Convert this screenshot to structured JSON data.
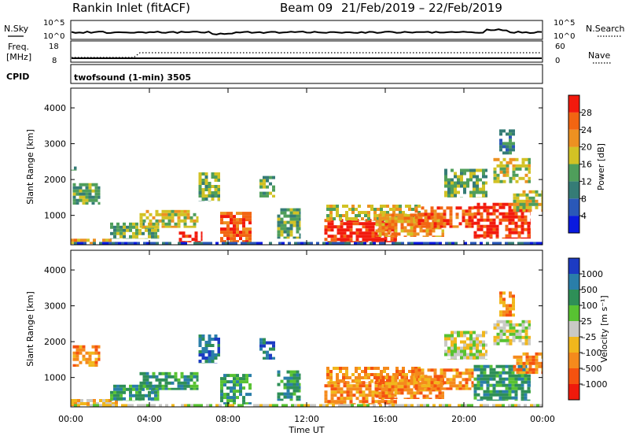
{
  "header": {
    "station": "Rankin Inlet (fitACF)",
    "beam": "Beam 09",
    "dates": "21/Feb/2019 – 22/Feb/2019"
  },
  "noise_panel": {
    "left_label": "N.Sky",
    "right_label": "N.Search",
    "left_ticks": [
      "10^5",
      "10^0"
    ],
    "right_ticks": [
      "10^5",
      "10^0"
    ]
  },
  "freq_panel": {
    "label_1": "Freq.",
    "label_2": "[MHz]",
    "left_ticks": [
      "18",
      "8"
    ],
    "right_label": "Nave",
    "right_ticks": [
      "60",
      "0"
    ]
  },
  "cpid_panel": {
    "label": "CPID",
    "mode": "twofsound (1-min) 3505"
  },
  "chart_data": [
    {
      "type": "heatmap",
      "name": "power",
      "ylabel": "Slant Range [km]",
      "xlabel": "",
      "x_ticks": [
        "00:00",
        "04:00",
        "08:00",
        "12:00",
        "16:00",
        "20:00",
        "00:00"
      ],
      "x_range_hours": [
        0,
        24
      ],
      "y_ticks": [
        1000,
        2000,
        3000,
        4000
      ],
      "ylim": [
        180,
        4550
      ],
      "colorbar": {
        "label": "Power [dB]",
        "ticks": [
          "28",
          "24",
          "20",
          "16",
          "12",
          "8",
          "4"
        ],
        "range": [
          0,
          32
        ],
        "colors": [
          "#0a1adf",
          "#2a58b8",
          "#357c76",
          "#4f9e5b",
          "#d2c224",
          "#ed9121",
          "#f26512",
          "#f21a0d"
        ]
      },
      "regions": [
        {
          "t0": 0.0,
          "t1": 2.4,
          "r0": 200,
          "r1": 350,
          "level": 5
        },
        {
          "t0": 0.1,
          "t1": 1.5,
          "r0": 1300,
          "r1": 1900,
          "level": 3
        },
        {
          "t0": 0.0,
          "t1": 0.3,
          "r0": 2250,
          "r1": 2450,
          "level": 2
        },
        {
          "t0": 2.0,
          "t1": 4.5,
          "r0": 350,
          "r1": 800,
          "level": 3
        },
        {
          "t0": 3.5,
          "t1": 6.5,
          "r0": 650,
          "r1": 1150,
          "level": 4
        },
        {
          "t0": 5.5,
          "t1": 6.7,
          "r0": 250,
          "r1": 550,
          "level": 7
        },
        {
          "t0": 6.5,
          "t1": 7.6,
          "r0": 1400,
          "r1": 2200,
          "level": 3
        },
        {
          "t0": 7.6,
          "t1": 9.2,
          "r0": 250,
          "r1": 1100,
          "level": 6
        },
        {
          "t0": 9.6,
          "t1": 10.4,
          "r0": 1500,
          "r1": 2100,
          "level": 3
        },
        {
          "t0": 10.5,
          "t1": 11.7,
          "r0": 350,
          "r1": 1200,
          "level": 3
        },
        {
          "t0": 12.9,
          "t1": 16.6,
          "r0": 250,
          "r1": 900,
          "level": 7
        },
        {
          "t0": 13.0,
          "t1": 17.8,
          "r0": 850,
          "r1": 1300,
          "level": 4
        },
        {
          "t0": 15.5,
          "t1": 19.0,
          "r0": 400,
          "r1": 1050,
          "level": 5
        },
        {
          "t0": 17.5,
          "t1": 20.5,
          "r0": 650,
          "r1": 1250,
          "level": 6
        },
        {
          "t0": 19.0,
          "t1": 21.2,
          "r0": 1500,
          "r1": 2300,
          "level": 3
        },
        {
          "t0": 20.5,
          "t1": 23.4,
          "r0": 350,
          "r1": 1350,
          "level": 7
        },
        {
          "t0": 21.5,
          "t1": 23.4,
          "r0": 1900,
          "r1": 2600,
          "level": 4
        },
        {
          "t0": 22.5,
          "t1": 24.0,
          "r0": 1100,
          "r1": 1700,
          "level": 4
        },
        {
          "t0": 21.8,
          "t1": 22.6,
          "r0": 2700,
          "r1": 3400,
          "level": 2
        },
        {
          "t0": 0.0,
          "t1": 24.0,
          "r0": 180,
          "r1": 260,
          "level": 1
        }
      ]
    },
    {
      "type": "heatmap",
      "name": "velocity",
      "ylabel": "Slant Range [km]",
      "xlabel": "Time UT",
      "x_ticks": [
        "00:00",
        "04:00",
        "08:00",
        "12:00",
        "16:00",
        "20:00",
        "00:00"
      ],
      "x_range_hours": [
        0,
        24
      ],
      "y_ticks": [
        1000,
        2000,
        3000,
        4000
      ],
      "ylim": [
        180,
        4550
      ],
      "colorbar": {
        "label": "Velocity [m s⁻¹]",
        "ticks": [
          "1000",
          "500",
          "100",
          "25",
          "–25",
          "–100",
          "–500",
          "–1000"
        ],
        "colors": [
          "#1c3bc3",
          "#2a7ea9",
          "#2e8f57",
          "#58c232",
          "#c9c9c5",
          "#f1b71c",
          "#f58a1c",
          "#f5520f",
          "#ef1a0c"
        ]
      },
      "regions": [
        {
          "t0": 0.0,
          "t1": 2.4,
          "r0": 200,
          "r1": 400,
          "level": 5
        },
        {
          "t0": 0.1,
          "t1": 1.5,
          "r0": 1300,
          "r1": 1900,
          "level": 6
        },
        {
          "t0": 2.0,
          "t1": 4.5,
          "r0": 350,
          "r1": 800,
          "level": 2
        },
        {
          "t0": 3.5,
          "t1": 6.5,
          "r0": 650,
          "r1": 1150,
          "level": 2
        },
        {
          "t0": 6.5,
          "t1": 7.6,
          "r0": 1400,
          "r1": 2200,
          "level": 1
        },
        {
          "t0": 7.6,
          "t1": 9.2,
          "r0": 250,
          "r1": 1100,
          "level": 2
        },
        {
          "t0": 9.6,
          "t1": 10.4,
          "r0": 1500,
          "r1": 2100,
          "level": 1
        },
        {
          "t0": 10.5,
          "t1": 11.7,
          "r0": 350,
          "r1": 1200,
          "level": 2
        },
        {
          "t0": 12.9,
          "t1": 16.6,
          "r0": 250,
          "r1": 900,
          "level": 6
        },
        {
          "t0": 13.0,
          "t1": 17.8,
          "r0": 850,
          "r1": 1300,
          "level": 6
        },
        {
          "t0": 15.5,
          "t1": 19.0,
          "r0": 400,
          "r1": 1050,
          "level": 6
        },
        {
          "t0": 17.5,
          "t1": 20.5,
          "r0": 650,
          "r1": 1250,
          "level": 6
        },
        {
          "t0": 19.0,
          "t1": 21.2,
          "r0": 1500,
          "r1": 2300,
          "level": 4
        },
        {
          "t0": 20.5,
          "t1": 23.4,
          "r0": 350,
          "r1": 1350,
          "level": 2
        },
        {
          "t0": 21.5,
          "t1": 23.4,
          "r0": 1900,
          "r1": 2600,
          "level": 4
        },
        {
          "t0": 22.5,
          "t1": 24.0,
          "r0": 1100,
          "r1": 1700,
          "level": 6
        },
        {
          "t0": 21.8,
          "t1": 22.6,
          "r0": 2700,
          "r1": 3400,
          "level": 6
        },
        {
          "t0": 0.0,
          "t1": 24.0,
          "r0": 180,
          "r1": 260,
          "level": 4
        }
      ]
    }
  ]
}
